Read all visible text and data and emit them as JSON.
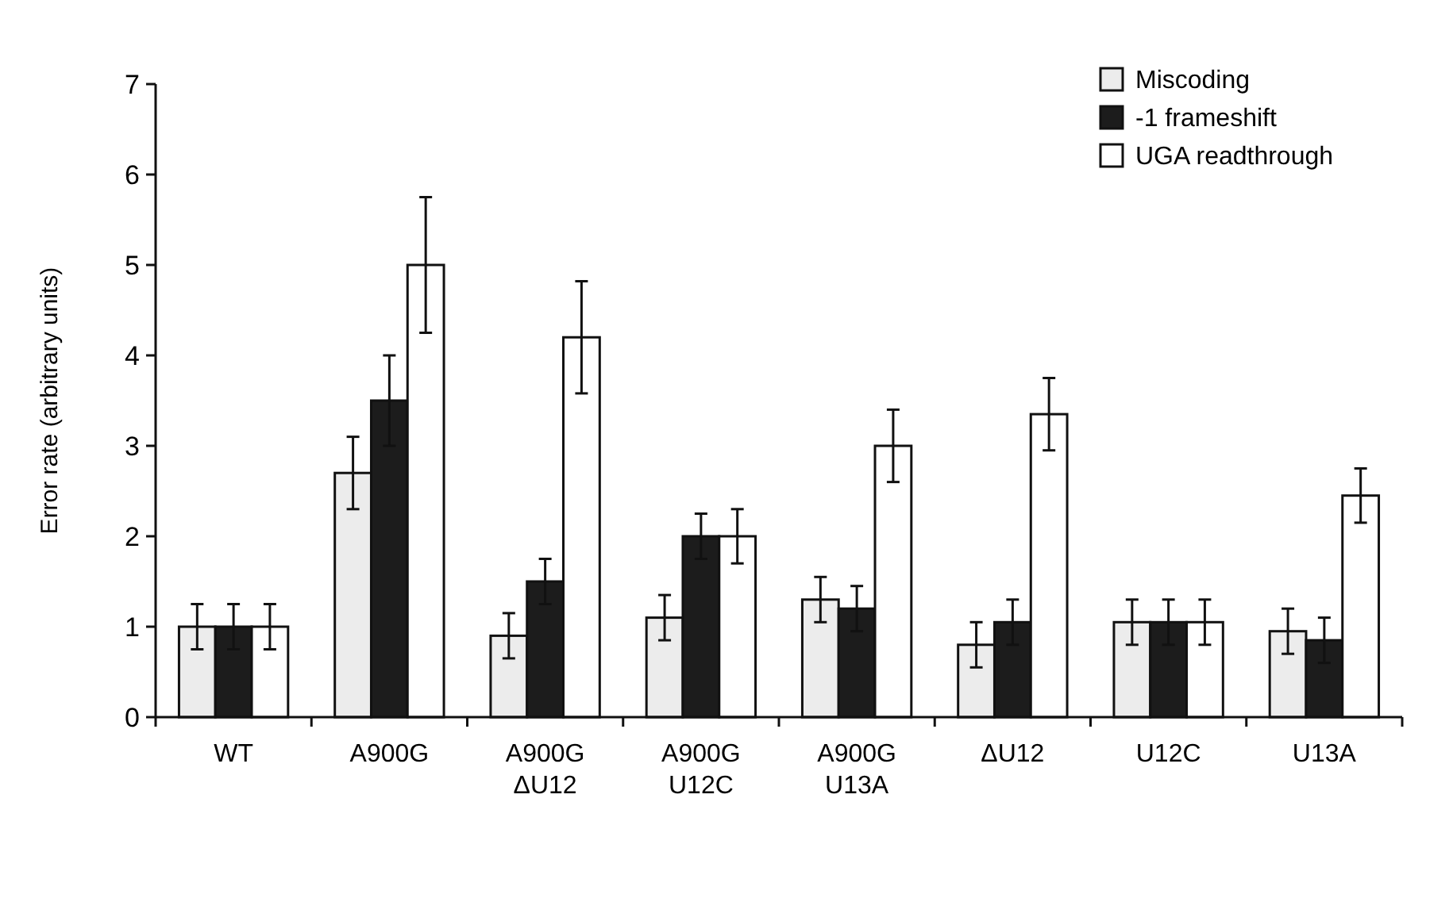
{
  "chart_data": {
    "type": "bar",
    "ylabel": "Error rate (arbitrary units)",
    "categories": [
      "WT",
      "A900G",
      "A900G\nΔU12",
      "A900G\nU12C",
      "A900G\nU13A",
      "ΔU12",
      "U12C",
      "U13A"
    ],
    "series": [
      {
        "name": "Miscoding",
        "color": "#ececec",
        "values": [
          1,
          2.7,
          0.9,
          1.1,
          1.3,
          0.8,
          1.05,
          0.95
        ],
        "errors": [
          0.25,
          0.4,
          0.25,
          0.25,
          0.25,
          0.25,
          0.25,
          0.25
        ]
      },
      {
        "name": "-1 frameshift",
        "color": "#1c1c1c",
        "values": [
          1,
          3.5,
          1.5,
          2,
          1.2,
          1.05,
          1.05,
          0.85
        ],
        "errors": [
          0.25,
          0.5,
          0.25,
          0.25,
          0.25,
          0.25,
          0.25,
          0.25
        ]
      },
      {
        "name": "UGA readthrough",
        "color": "#ffffff",
        "values": [
          1,
          5,
          4.2,
          2,
          3,
          3.35,
          1.05,
          2.45
        ],
        "errors": [
          0.25,
          0.75,
          0.62,
          0.3,
          0.4,
          0.4,
          0.25,
          0.3
        ]
      }
    ],
    "ylim": [
      0,
      7
    ],
    "yticks": [
      0,
      1,
      2,
      3,
      4,
      5,
      6,
      7
    ],
    "grid": false,
    "legend": "top right"
  }
}
